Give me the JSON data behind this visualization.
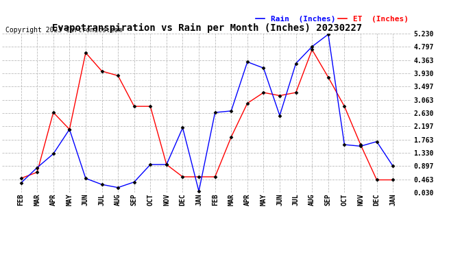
{
  "title": "Evapotranspiration vs Rain per Month (Inches) 20230227",
  "copyright": "Copyright 2023 Cartronics.com",
  "legend_rain": "Rain  (Inches)",
  "legend_et": "ET  (Inches)",
  "x_labels": [
    "FEB",
    "MAR",
    "APR",
    "MAY",
    "JUN",
    "JUL",
    "AUG",
    "SEP",
    "OCT",
    "NOV",
    "DEC",
    "JAN",
    "FEB",
    "MAR",
    "APR",
    "MAY",
    "JUN",
    "JUL",
    "AUG",
    "SEP",
    "OCT",
    "NOV",
    "DEC",
    "JAN"
  ],
  "rain_values": [
    0.35,
    0.85,
    1.3,
    2.1,
    0.5,
    0.3,
    0.2,
    0.38,
    0.95,
    0.95,
    2.15,
    0.08,
    2.65,
    2.7,
    4.3,
    4.1,
    2.55,
    4.25,
    4.8,
    5.2,
    1.6,
    1.55,
    1.7,
    0.9
  ],
  "et_values": [
    0.5,
    0.7,
    2.65,
    2.1,
    4.6,
    4.0,
    3.85,
    2.85,
    2.85,
    0.95,
    0.55,
    0.55,
    0.55,
    1.85,
    2.95,
    3.3,
    3.2,
    3.3,
    4.7,
    3.8,
    2.85,
    1.6,
    0.45,
    0.45
  ],
  "ylim": [
    0.03,
    5.23
  ],
  "yticks": [
    0.03,
    0.463,
    0.897,
    1.33,
    1.763,
    2.197,
    2.63,
    3.063,
    3.497,
    3.93,
    4.363,
    4.797,
    5.23
  ],
  "rain_color": "blue",
  "et_color": "red",
  "background_color": "#ffffff",
  "grid_color": "#bbbbbb",
  "title_fontsize": 10,
  "tick_fontsize": 7,
  "legend_fontsize": 8,
  "copyright_fontsize": 7
}
